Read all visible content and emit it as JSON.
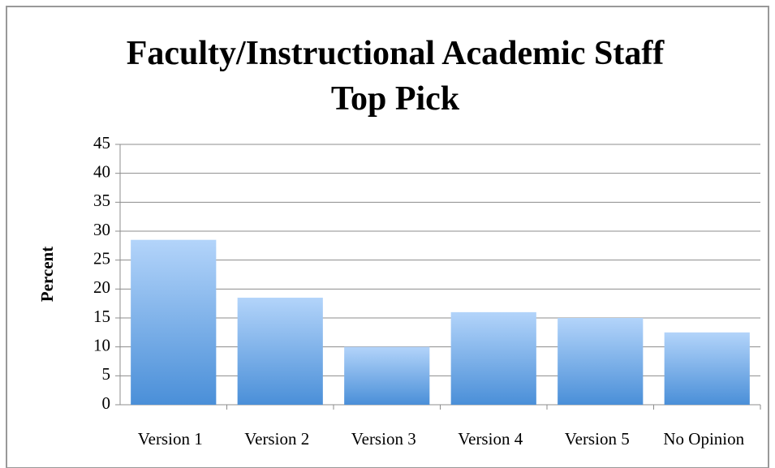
{
  "chart_data": {
    "type": "bar",
    "title": "Faculty/Instructional Academic Staff  Top Pick",
    "y_label": "Percent",
    "categories": [
      "Version 1",
      "Version 2",
      "Version 3",
      "Version 4",
      "Version 5",
      "No Opinion"
    ],
    "values": [
      28.5,
      18.5,
      10,
      16,
      15,
      12.5
    ],
    "color": "#4a8fd8",
    "ylim": [
      0,
      45
    ],
    "yticks": [
      0,
      5,
      10,
      15,
      20,
      25,
      30,
      35,
      40,
      45
    ],
    "grid": true
  }
}
